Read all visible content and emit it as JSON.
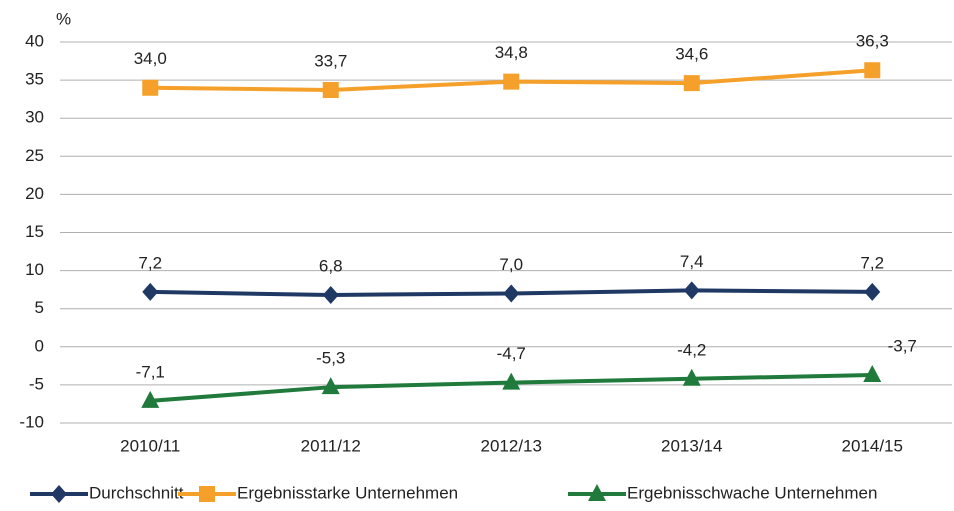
{
  "chart_data": {
    "type": "line",
    "y_axis_label": "%",
    "categories": [
      "2010/11",
      "2011/12",
      "2012/13",
      "2013/14",
      "2014/15"
    ],
    "series": [
      {
        "name": "Durchschnitt",
        "color": "#1f3864",
        "marker": "diamond",
        "values": [
          7.2,
          6.8,
          7.0,
          7.4,
          7.2
        ],
        "value_labels": [
          "7,2",
          "6,8",
          "7,0",
          "7,4",
          "7,2"
        ]
      },
      {
        "name": "Ergebnisstarke Unternehmen",
        "color": "#f6a02c",
        "marker": "square",
        "values": [
          34.0,
          33.7,
          34.8,
          34.6,
          36.3
        ],
        "value_labels": [
          "34,0",
          "33,7",
          "34,8",
          "34,6",
          "36,3"
        ]
      },
      {
        "name": "Ergebnisschwache Unternehmen",
        "color": "#1f7a3c",
        "marker": "triangle",
        "values": [
          -7.1,
          -5.3,
          -4.7,
          -4.2,
          -3.7
        ],
        "value_labels": [
          "-7,1",
          "-5,3",
          "-4,7",
          "-4,2",
          "-3,7"
        ]
      }
    ],
    "ylim": [
      -10,
      40
    ],
    "yticks": [
      -10,
      -5,
      0,
      5,
      10,
      15,
      20,
      25,
      30,
      35,
      40
    ],
    "grid": true,
    "legend": "bottom"
  }
}
